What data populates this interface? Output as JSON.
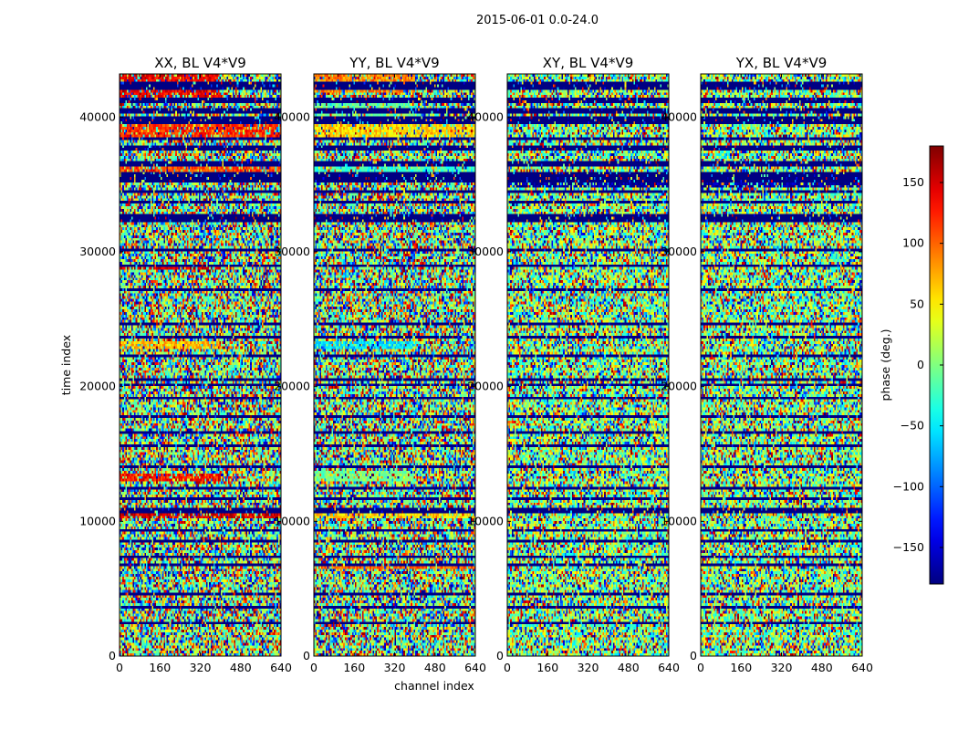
{
  "figure": {
    "suptitle": "2015-06-01 0.0-24.0"
  },
  "chart_data": {
    "type": "heatmap",
    "title": "2015-06-01 0.0-24.0",
    "xlabel": "channel index",
    "ylabel": "time index",
    "xlim": [
      0,
      640
    ],
    "ylim": [
      0,
      43200
    ],
    "x_ticks": [
      0,
      160,
      320,
      480,
      640
    ],
    "y_ticks": [
      0,
      10000,
      20000,
      30000,
      40000
    ],
    "colormap": "jet",
    "colorbar": {
      "label": "phase (deg.)",
      "range": [
        -180,
        180
      ],
      "ticks": [
        -150,
        -100,
        -50,
        0,
        50,
        100,
        150
      ]
    },
    "panels": [
      {
        "title": "XX, BL V4*V9",
        "pol": "XX"
      },
      {
        "title": "YY, BL V4*V9",
        "pol": "YY"
      },
      {
        "title": "XY, BL V4*V9",
        "pol": "XY"
      },
      {
        "title": "YX, BL V4*V9",
        "pol": "YX"
      }
    ],
    "flagged_time_bands": [
      [
        42000,
        42600
      ],
      [
        41100,
        41500
      ],
      [
        40300,
        40700
      ],
      [
        39500,
        40000
      ],
      [
        38200,
        38500
      ],
      [
        37500,
        37800
      ],
      [
        36400,
        36700
      ],
      [
        35200,
        35900
      ],
      [
        34300,
        34600
      ],
      [
        33500,
        33700
      ],
      [
        32200,
        32700
      ],
      [
        30000,
        30200
      ],
      [
        28800,
        29000
      ],
      [
        27100,
        27300
      ],
      [
        24600,
        24800
      ],
      [
        23500,
        23800
      ],
      [
        22100,
        22300
      ],
      [
        20500,
        20700
      ],
      [
        20000,
        20300
      ],
      [
        19000,
        19200
      ],
      [
        17600,
        17800
      ],
      [
        16400,
        16600
      ],
      [
        15500,
        15700
      ],
      [
        13900,
        14100
      ],
      [
        12300,
        12500
      ],
      [
        11600,
        11800
      ],
      [
        10700,
        10900
      ],
      [
        9300,
        9500
      ],
      [
        8400,
        8600
      ],
      [
        7200,
        7500
      ],
      [
        6600,
        6800
      ],
      [
        4600,
        4800
      ],
      [
        3500,
        3700
      ],
      [
        2300,
        2500
      ]
    ],
    "coherent_time_bands": {
      "XX": [
        {
          "t": [
            41000,
            43200
          ],
          "phase": 140,
          "chan_max": 400
        },
        {
          "t": [
            38300,
            39900
          ],
          "phase": 120,
          "chan_max": 640
        },
        {
          "t": [
            36000,
            36800
          ],
          "phase": 110,
          "chan_max": 640
        },
        {
          "t": [
            28600,
            29000
          ],
          "phase": 150,
          "chan_max": 400
        },
        {
          "t": [
            22700,
            23400
          ],
          "phase": 70,
          "chan_max": 400
        },
        {
          "t": [
            12900,
            13600
          ],
          "phase": 130,
          "chan_max": 400
        },
        {
          "t": [
            10200,
            10700
          ],
          "phase": 150,
          "chan_max": 640
        },
        {
          "t": [
            6700,
            6900
          ],
          "phase": -150,
          "chan_max": 640
        }
      ],
      "YY": [
        {
          "t": [
            41800,
            43200
          ],
          "phase": 90,
          "chan_max": 400
        },
        {
          "t": [
            40000,
            41400
          ],
          "phase": -10,
          "chan_max": 400
        },
        {
          "t": [
            38400,
            39400
          ],
          "phase": 60,
          "chan_max": 640
        },
        {
          "t": [
            35800,
            36800
          ],
          "phase": -30,
          "chan_max": 640
        },
        {
          "t": [
            22700,
            23400
          ],
          "phase": -60,
          "chan_max": 400
        },
        {
          "t": [
            13000,
            13800
          ],
          "phase": 0,
          "chan_max": 400
        },
        {
          "t": [
            10200,
            10700
          ],
          "phase": 60,
          "chan_max": 640
        },
        {
          "t": [
            6400,
            6800
          ],
          "phase": 100,
          "chan_max": 640
        },
        {
          "t": [
            4600,
            4800
          ],
          "phase": 90,
          "chan_max": 640
        }
      ],
      "XY": [
        {
          "t": [
            34700,
            35900
          ],
          "phase": -170,
          "chan_max": 640
        }
      ],
      "YX": [
        {
          "t": [
            34700,
            35900
          ],
          "phase": -170,
          "chan_max": 640
        }
      ]
    }
  }
}
